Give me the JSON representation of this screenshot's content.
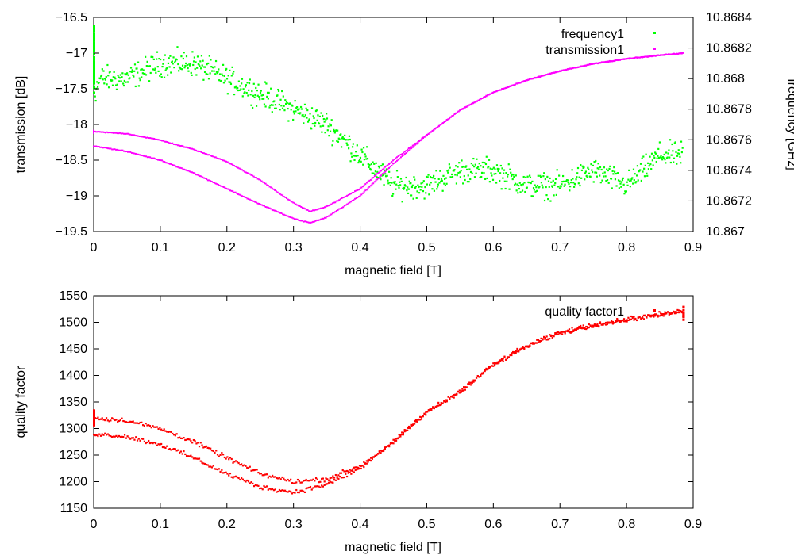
{
  "chart_data": [
    {
      "type": "scatter",
      "xlabel": "magnetic field [T]",
      "ylabel": "transmission [dB]",
      "y2label": "frequency [GHz]",
      "xlim": [
        0,
        0.9
      ],
      "ylim": [
        -19.5,
        -16.5
      ],
      "y2lim": [
        10.867,
        10.8684
      ],
      "x_ticks": [
        "0",
        "0.1",
        "0.2",
        "0.3",
        "0.4",
        "0.5",
        "0.6",
        "0.7",
        "0.8",
        "0.9"
      ],
      "y_ticks": [
        "-16.5",
        "-17",
        "-17.5",
        "-18",
        "-18.5",
        "-19",
        "-19.5"
      ],
      "y2_ticks": [
        "10.8684",
        "10.8682",
        "10.868",
        "10.8678",
        "10.8676",
        "10.8674",
        "10.8672",
        "10.867"
      ],
      "grid": false,
      "legend_position": "top-right",
      "series": [
        {
          "name": "frequency1",
          "axis": "y2",
          "color": "#00ff00",
          "x": [
            0.0,
            0.0,
            0.0,
            0.01,
            0.05,
            0.1,
            0.15,
            0.2,
            0.25,
            0.3,
            0.35,
            0.4,
            0.45,
            0.5,
            0.55,
            0.6,
            0.65,
            0.7,
            0.75,
            0.8,
            0.85,
            0.885
          ],
          "y": [
            10.8683,
            10.8681,
            10.8679,
            10.868,
            10.868,
            10.8681,
            10.8681,
            10.868,
            10.8679,
            10.8678,
            10.8677,
            10.8675,
            10.8673,
            10.8673,
            10.8674,
            10.8674,
            10.8673,
            10.8673,
            10.8674,
            10.8673,
            10.8675,
            10.8675
          ]
        },
        {
          "name": "transmission1",
          "axis": "y",
          "color": "#ff00ff",
          "x": [
            0.0,
            0.05,
            0.1,
            0.15,
            0.2,
            0.25,
            0.3,
            0.325,
            0.35,
            0.4,
            0.45,
            0.5,
            0.55,
            0.6,
            0.65,
            0.7,
            0.75,
            0.8,
            0.85,
            0.885
          ],
          "y_upward": [
            -18.1,
            -18.13,
            -18.22,
            -18.35,
            -18.52,
            -18.78,
            -19.1,
            -19.22,
            -19.15,
            -18.9,
            -18.5,
            -18.15,
            -17.8,
            -17.55,
            -17.38,
            -17.25,
            -17.15,
            -17.08,
            -17.03,
            -17.0
          ],
          "y_downward": [
            -18.3,
            -18.38,
            -18.5,
            -18.68,
            -18.9,
            -19.12,
            -19.32,
            -19.38,
            -19.3,
            -19.0,
            -18.55,
            -18.15,
            -17.8,
            -17.55,
            -17.38,
            -17.25,
            -17.15,
            -17.08,
            -17.03,
            -17.0
          ]
        }
      ]
    },
    {
      "type": "scatter",
      "xlabel": "magnetic field [T]",
      "ylabel": "quality factor",
      "xlim": [
        0,
        0.9
      ],
      "ylim": [
        1150,
        1550
      ],
      "x_ticks": [
        "0",
        "0.1",
        "0.2",
        "0.3",
        "0.4",
        "0.5",
        "0.6",
        "0.7",
        "0.8",
        "0.9"
      ],
      "y_ticks": [
        "1550",
        "1500",
        "1450",
        "1400",
        "1350",
        "1300",
        "1250",
        "1200",
        "1150"
      ],
      "grid": false,
      "legend_position": "top-right",
      "series": [
        {
          "name": "quality factor1",
          "color": "#ff0000",
          "x": [
            0.0,
            0.05,
            0.1,
            0.15,
            0.2,
            0.25,
            0.3,
            0.35,
            0.4,
            0.45,
            0.5,
            0.55,
            0.6,
            0.65,
            0.7,
            0.75,
            0.8,
            0.85,
            0.885
          ],
          "y_upper": [
            1320,
            1315,
            1300,
            1275,
            1245,
            1215,
            1200,
            1205,
            1230,
            1275,
            1330,
            1370,
            1420,
            1455,
            1480,
            1495,
            1505,
            1515,
            1520
          ],
          "y_lower": [
            1290,
            1285,
            1270,
            1245,
            1215,
            1190,
            1180,
            1195,
            1225,
            1275,
            1330,
            1370,
            1420,
            1455,
            1480,
            1495,
            1505,
            1515,
            1520
          ]
        }
      ]
    }
  ]
}
